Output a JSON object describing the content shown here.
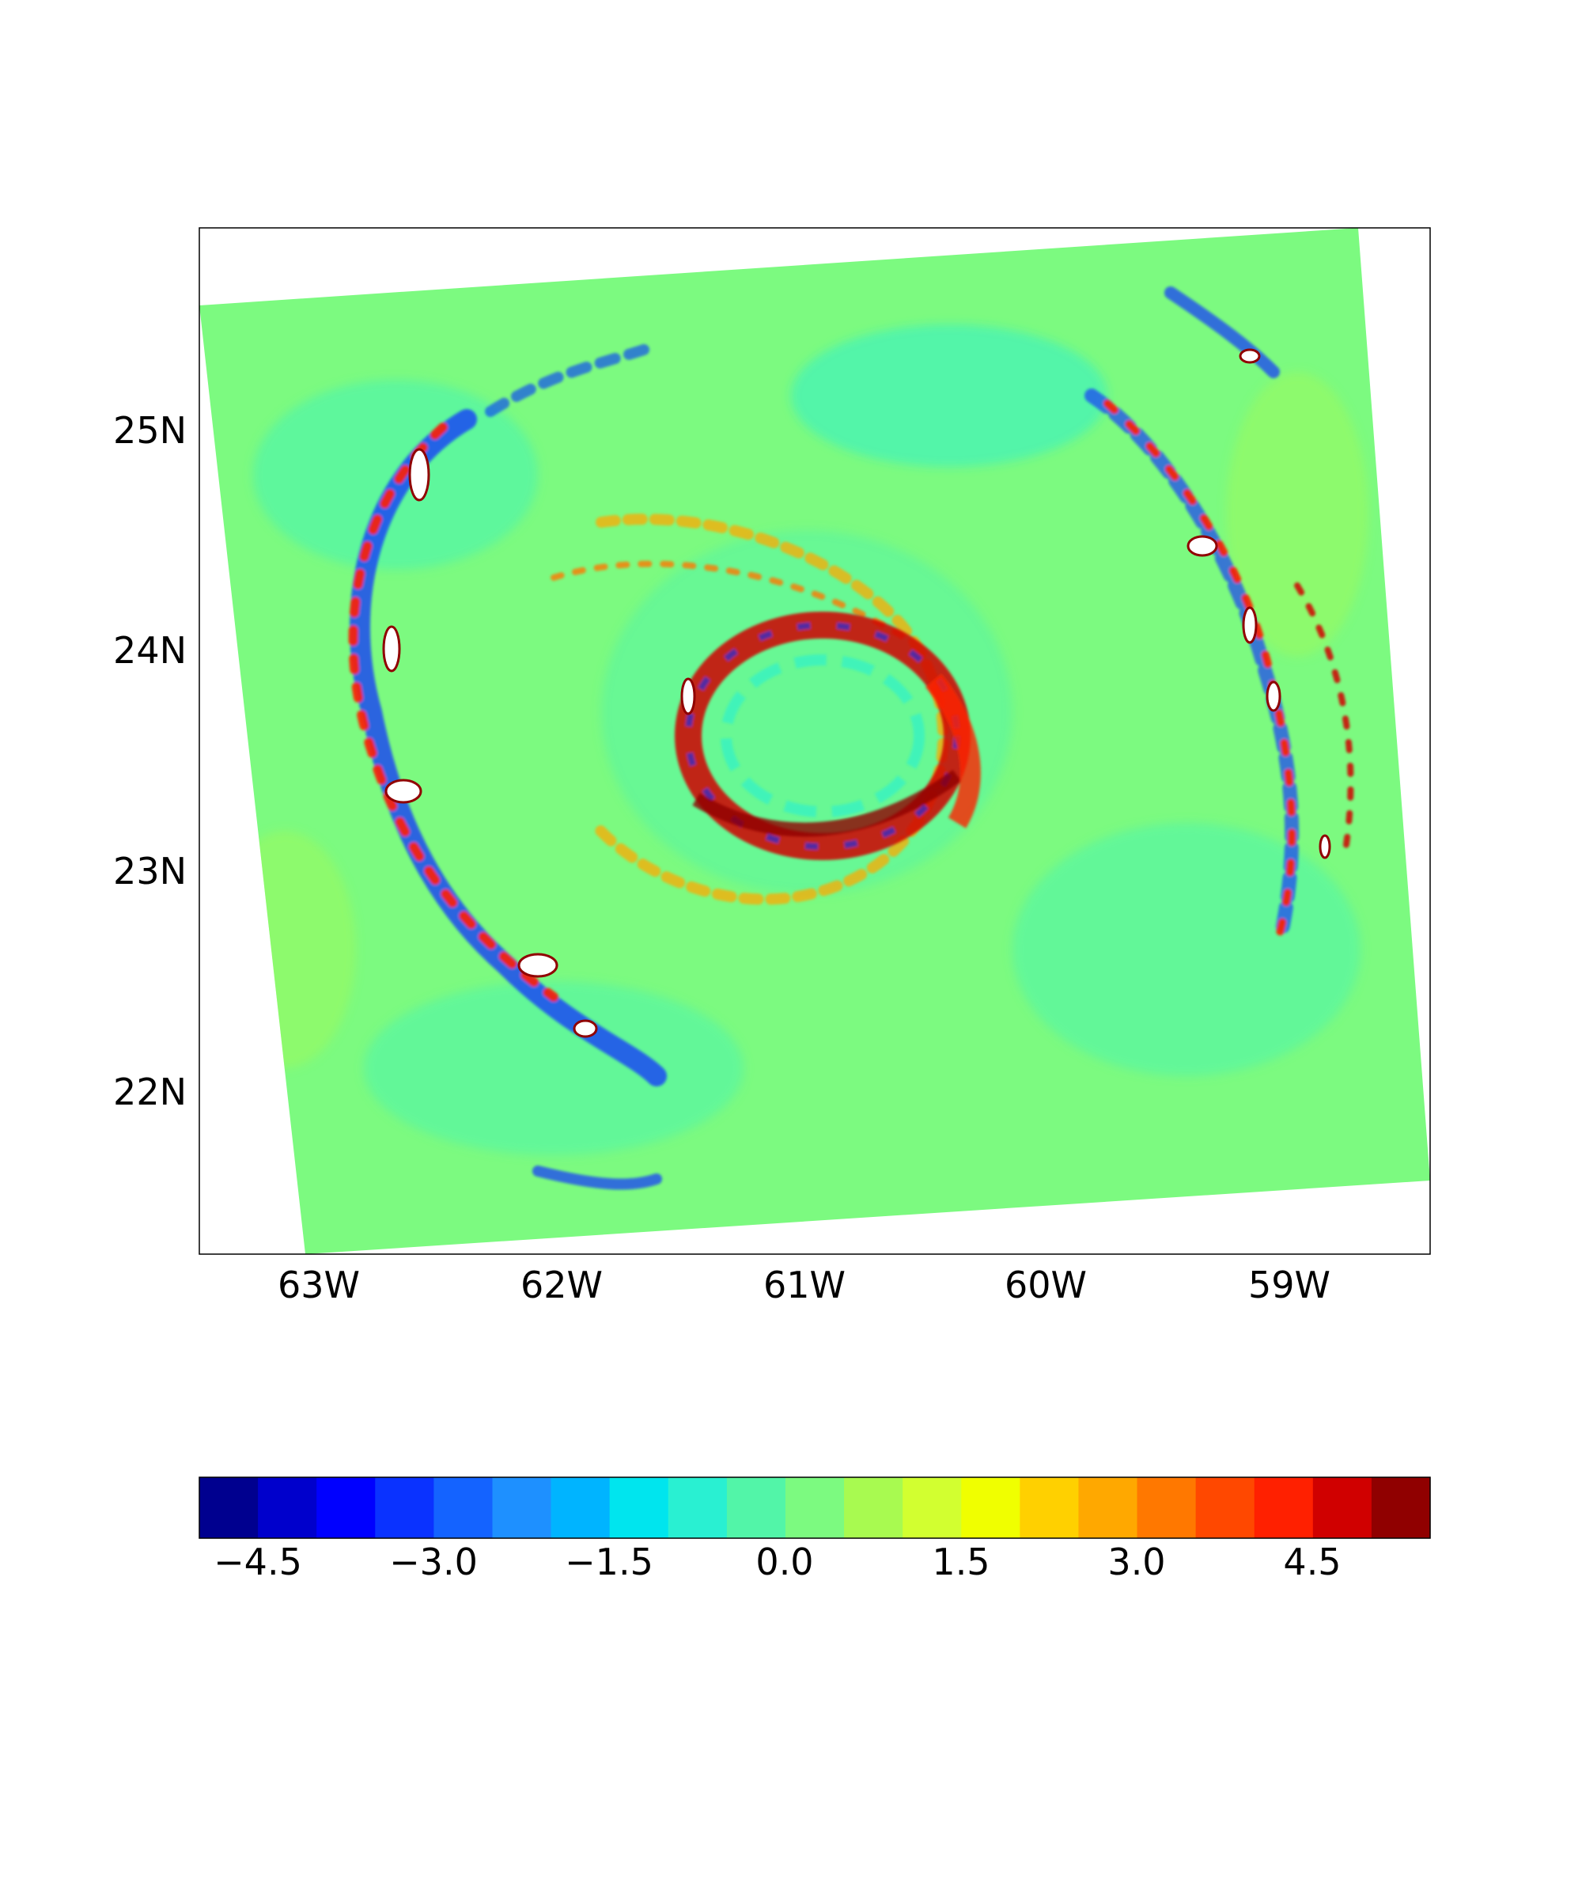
{
  "map": {
    "lat_ticks": [
      "25N",
      "24N",
      "23N",
      "22N"
    ],
    "lon_ticks": [
      "63W",
      "62W",
      "61W",
      "60W",
      "59W"
    ]
  },
  "colorbar": {
    "ticks": [
      "−4.5",
      "−3.0",
      "−1.5",
      "0.0",
      "1.5",
      "3.0",
      "4.5"
    ],
    "levels": [
      "#00008f",
      "#0000cc",
      "#0000ff",
      "#0a32ff",
      "#1463ff",
      "#1e90ff",
      "#00b4ff",
      "#00e5ee",
      "#29f0d2",
      "#52f5a8",
      "#7cfa80",
      "#a8fa50",
      "#d2ff30",
      "#f0ff00",
      "#ffd000",
      "#ffa800",
      "#ff7800",
      "#ff4800",
      "#ff2000",
      "#d00000",
      "#900000"
    ],
    "range": [
      -5.0,
      5.5
    ]
  },
  "chart_data": {
    "type": "heatmap",
    "field": "gridded values over a hurricane region (spiral pattern)",
    "lat_ticks": [
      25,
      24,
      23,
      22
    ],
    "lon_ticks": [
      -63,
      -62,
      -61,
      -60,
      -59
    ],
    "xlim": [
      -63.5,
      -58.5
    ],
    "ylim": [
      21.2,
      25.9
    ],
    "colorbar_ticks": [
      -4.5,
      -3.0,
      -1.5,
      0.0,
      1.5,
      3.0,
      4.5
    ],
    "colorbar_range": [
      -5.0,
      5.5
    ],
    "features": [
      "outer spiral rainband arc on west side near 62.5W-63W from 21.5N to 25N with strong +/- values",
      "inner eyewall ring centered near 60.8W 23.4N with strong positive values",
      "eastern rainband near 59W-59.5W from 22.5N to 25N",
      "background values near 0.0 (green)"
    ]
  }
}
